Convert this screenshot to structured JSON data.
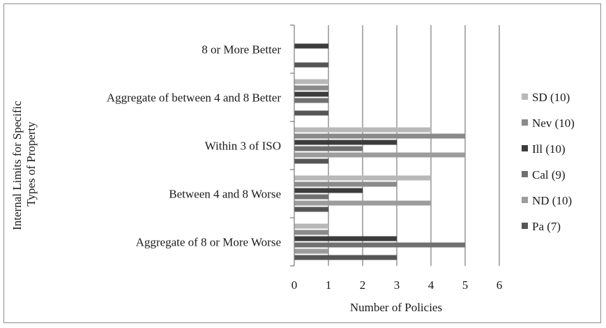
{
  "chart_data": {
    "type": "bar",
    "orientation": "horizontal",
    "title": "",
    "xlabel": "Number of Policies",
    "ylabel": "Internal Limits for Specific Types of Property",
    "ylabel_lines": [
      "Internal Limits for Specific",
      "Types of Property"
    ],
    "categories": [
      "Aggregate of 8 or More Worse",
      "Between 4 and 8 Worse",
      "Within 3 of ISO",
      "Aggregate of between 4 and 8 Better",
      "8 or More Better"
    ],
    "xlim": [
      0,
      6
    ],
    "xticks": [
      "0",
      "1",
      "2",
      "3",
      "4",
      "5",
      "6"
    ],
    "grid": "vertical",
    "legend_position": "right",
    "series": [
      {
        "name": "SD (10)",
        "color": "#b8b8b8",
        "values": [
          1,
          4,
          4,
          1,
          0
        ]
      },
      {
        "name": "Nev (10)",
        "color": "#8a8a8a",
        "values": [
          1,
          3,
          5,
          1,
          0
        ]
      },
      {
        "name": "Ill (10)",
        "color": "#3c3c3c",
        "values": [
          3,
          2,
          3,
          1,
          1
        ]
      },
      {
        "name": "Cal (9)",
        "color": "#707070",
        "values": [
          5,
          1,
          2,
          1,
          0
        ]
      },
      {
        "name": "ND (10)",
        "color": "#9c9c9c",
        "values": [
          1,
          4,
          5,
          0,
          0
        ]
      },
      {
        "name": "Pa (7)",
        "color": "#565656",
        "values": [
          3,
          1,
          1,
          1,
          1
        ]
      }
    ]
  }
}
